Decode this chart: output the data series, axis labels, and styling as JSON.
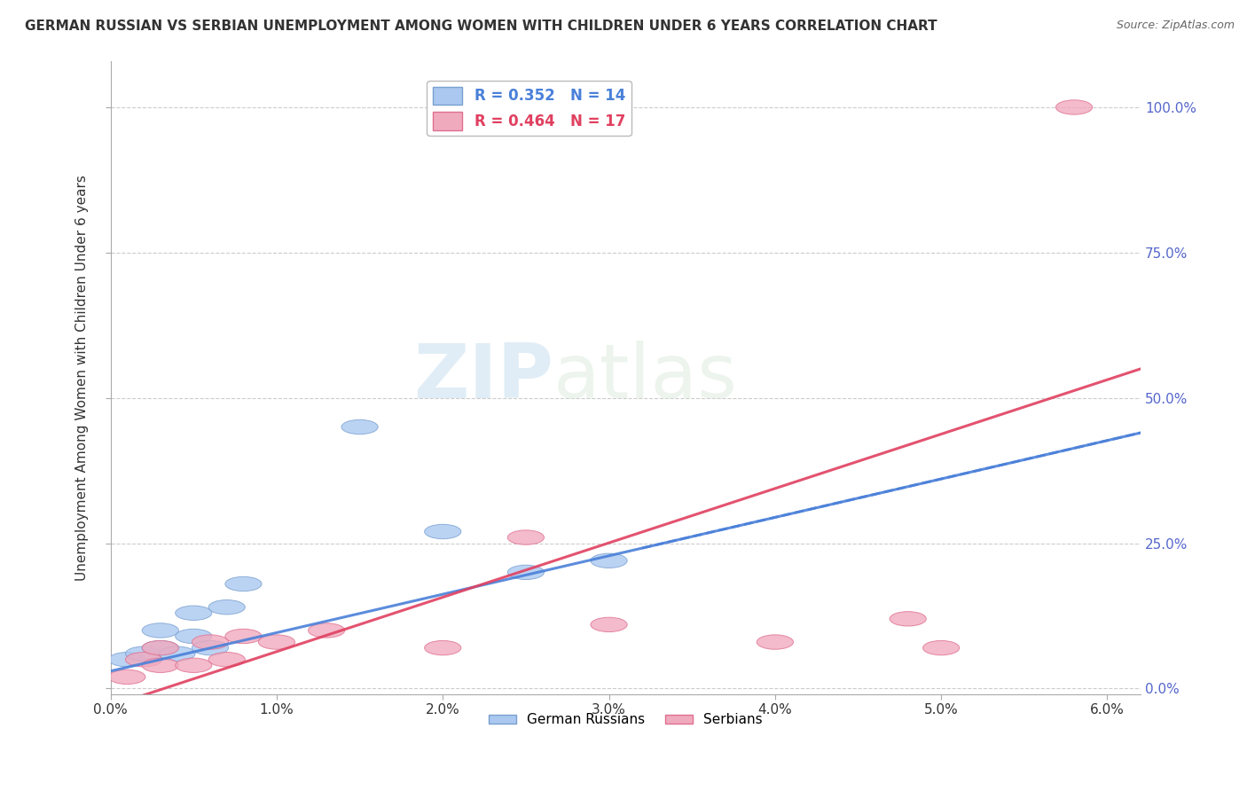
{
  "title": "GERMAN RUSSIAN VS SERBIAN UNEMPLOYMENT AMONG WOMEN WITH CHILDREN UNDER 6 YEARS CORRELATION CHART",
  "source": "Source: ZipAtlas.com",
  "ylabel": "Unemployment Among Women with Children Under 6 years",
  "xlim": [
    0.0,
    0.062
  ],
  "ylim": [
    -0.01,
    1.08
  ],
  "xticks": [
    0.0,
    0.01,
    0.02,
    0.03,
    0.04,
    0.05,
    0.06
  ],
  "xticklabels": [
    "0.0%",
    "1.0%",
    "2.0%",
    "3.0%",
    "4.0%",
    "5.0%",
    "6.0%"
  ],
  "yticks": [
    0.0,
    0.25,
    0.5,
    0.75,
    1.0
  ],
  "yticklabels": [
    "0.0%",
    "25.0%",
    "50.0%",
    "75.0%",
    "100.0%"
  ],
  "german_russian_color": "#aac8f0",
  "serbian_color": "#f0aabe",
  "german_russian_edge": "#7aA0d0",
  "serbian_edge": "#e07090",
  "trend_german_color": "#4a80d9",
  "trend_serbian_color": "#e04060",
  "r_german": 0.352,
  "n_german": 14,
  "r_serbian": 0.464,
  "n_serbian": 17,
  "german_russian_x": [
    0.001,
    0.002,
    0.003,
    0.003,
    0.004,
    0.005,
    0.005,
    0.006,
    0.007,
    0.008,
    0.015,
    0.02,
    0.025,
    0.03
  ],
  "german_russian_y": [
    0.05,
    0.06,
    0.07,
    0.1,
    0.06,
    0.09,
    0.13,
    0.07,
    0.14,
    0.18,
    0.45,
    0.27,
    0.2,
    0.22
  ],
  "serbian_x": [
    0.001,
    0.002,
    0.003,
    0.003,
    0.005,
    0.006,
    0.007,
    0.008,
    0.01,
    0.013,
    0.02,
    0.025,
    0.03,
    0.04,
    0.048,
    0.05,
    0.058
  ],
  "serbian_y": [
    0.02,
    0.05,
    0.04,
    0.07,
    0.04,
    0.08,
    0.05,
    0.09,
    0.08,
    0.1,
    0.07,
    0.26,
    0.11,
    0.08,
    0.12,
    0.07,
    1.0
  ],
  "trend_gr_x0": 0.0,
  "trend_gr_y0": 0.03,
  "trend_gr_x1": 0.062,
  "trend_gr_y1": 0.44,
  "trend_sb_x0": 0.0,
  "trend_sb_y0": -0.03,
  "trend_sb_x1": 0.062,
  "trend_sb_y1": 0.55,
  "watermark_zip": "ZIP",
  "watermark_atlas": "atlas",
  "background_color": "#ffffff",
  "grid_color": "#cccccc",
  "right_axis_color": "#5566cc",
  "tick_color": "#333333"
}
